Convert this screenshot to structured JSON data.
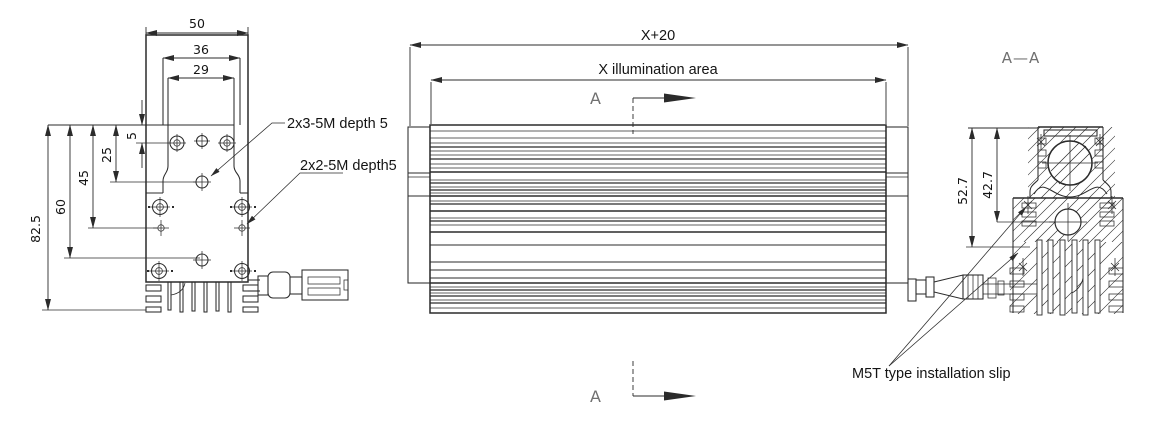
{
  "drawing": {
    "front_view": {
      "dim_width_outer": "50",
      "dim_width_step": "36",
      "dim_width_slot": "29",
      "dim_top_offset": "5",
      "dim_hole_offset": "25",
      "dim_mid_offset": "45",
      "dim_row_offset": "60",
      "dim_height_total": "82.5",
      "note_top_holes": "2x3-5M depth 5",
      "note_side_holes": "2x2-5M depth5"
    },
    "side_view": {
      "dim_total_length": "X+20",
      "dim_illumination": "X illumination area",
      "section_marker": "A"
    },
    "section_view": {
      "title": "A—A",
      "dim_height_overall": "52.7",
      "dim_height_axis": "42.7",
      "note_mounting": "M5T type installation slip"
    },
    "colors": {
      "line": "#2b2b2b",
      "text": "#141414",
      "background": "#ffffff"
    }
  }
}
